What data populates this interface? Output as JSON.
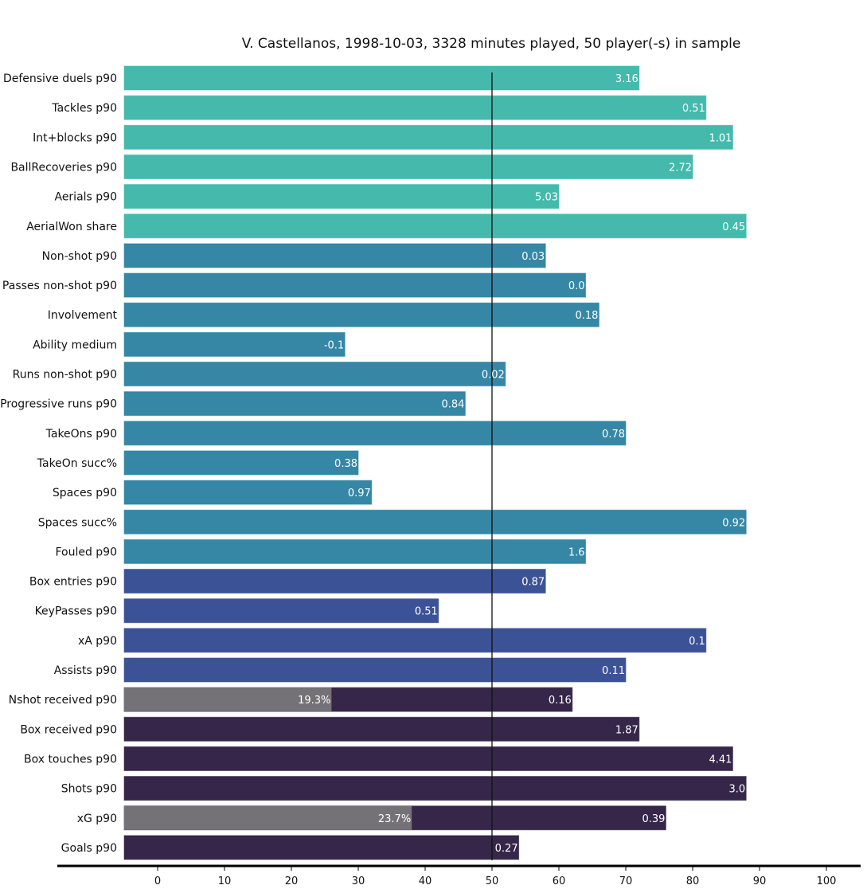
{
  "chart_data": {
    "type": "bar",
    "orientation": "horizontal",
    "title": "V. Castellanos, 1998-10-03, 3328 minutes played, 50 player(-s) in sample",
    "xlabel": "",
    "ylabel": "",
    "xlim": [
      -5,
      105
    ],
    "xticks": [
      0,
      10,
      20,
      30,
      40,
      50,
      60,
      70,
      80,
      90,
      100
    ],
    "reference_line": 50,
    "grid": false,
    "bar_start": -5,
    "group_colors": {
      "defending": "#46b9ad",
      "progression": "#3587a5",
      "creation": "#3c5296",
      "finishing": "#36264a",
      "share": "#757277"
    },
    "categories": [
      "Defensive duels p90",
      "Tackles p90",
      "Int+blocks p90",
      "BallRecoveries p90",
      "Aerials p90",
      "AerialWon share",
      "Non-shot p90",
      "Passes non-shot p90",
      "Involvement",
      "Ability medium",
      "Runs non-shot p90",
      "Progressive runs p90",
      "TakeOns p90",
      "TakeOn succ%",
      "Spaces p90",
      "Spaces succ%",
      "Fouled p90",
      "Box entries p90",
      "KeyPasses p90",
      "xA p90",
      "Assists p90",
      "Nshot received p90",
      "Box received p90",
      "Box touches p90",
      "Shots p90",
      "xG p90",
      "Goals p90"
    ],
    "bars": [
      {
        "label": "Defensive duels p90",
        "percentile": 72,
        "value_label": "3.16",
        "group": "defending"
      },
      {
        "label": "Tackles p90",
        "percentile": 82,
        "value_label": "0.51",
        "group": "defending"
      },
      {
        "label": "Int+blocks p90",
        "percentile": 86,
        "value_label": "1.01",
        "group": "defending"
      },
      {
        "label": "BallRecoveries p90",
        "percentile": 80,
        "value_label": "2.72",
        "group": "defending"
      },
      {
        "label": "Aerials p90",
        "percentile": 60,
        "value_label": "5.03",
        "group": "defending"
      },
      {
        "label": "AerialWon share",
        "percentile": 88,
        "value_label": "0.45",
        "group": "defending"
      },
      {
        "label": "Non-shot p90",
        "percentile": 58,
        "value_label": "0.03",
        "group": "progression"
      },
      {
        "label": "Passes non-shot p90",
        "percentile": 64,
        "value_label": "0.0",
        "group": "progression"
      },
      {
        "label": "Involvement",
        "percentile": 66,
        "value_label": "0.18",
        "group": "progression"
      },
      {
        "label": "Ability medium",
        "percentile": 28,
        "value_label": "-0.1",
        "group": "progression"
      },
      {
        "label": "Runs non-shot p90",
        "percentile": 52,
        "value_label": "0.02",
        "group": "progression"
      },
      {
        "label": "Progressive runs p90",
        "percentile": 46,
        "value_label": "0.84",
        "group": "progression"
      },
      {
        "label": "TakeOns p90",
        "percentile": 70,
        "value_label": "0.78",
        "group": "progression"
      },
      {
        "label": "TakeOn succ%",
        "percentile": 30,
        "value_label": "0.38",
        "group": "progression"
      },
      {
        "label": "Spaces p90",
        "percentile": 32,
        "value_label": "0.97",
        "group": "progression"
      },
      {
        "label": "Spaces succ%",
        "percentile": 88,
        "value_label": "0.92",
        "group": "progression"
      },
      {
        "label": "Fouled p90",
        "percentile": 64,
        "value_label": "1.6",
        "group": "progression"
      },
      {
        "label": "Box entries p90",
        "percentile": 58,
        "value_label": "0.87",
        "group": "creation"
      },
      {
        "label": "KeyPasses p90",
        "percentile": 42,
        "value_label": "0.51",
        "group": "creation"
      },
      {
        "label": "xA p90",
        "percentile": 82,
        "value_label": "0.1",
        "group": "creation"
      },
      {
        "label": "Assists p90",
        "percentile": 70,
        "value_label": "0.11",
        "group": "creation"
      },
      {
        "label": "Nshot received p90",
        "percentile": 62,
        "value_label": "0.16",
        "group": "finishing",
        "share_percentile": 26,
        "share_label": "19.3%"
      },
      {
        "label": "Box received p90",
        "percentile": 72,
        "value_label": "1.87",
        "group": "finishing"
      },
      {
        "label": "Box touches p90",
        "percentile": 86,
        "value_label": "4.41",
        "group": "finishing"
      },
      {
        "label": "Shots p90",
        "percentile": 88,
        "value_label": "3.0",
        "group": "finishing"
      },
      {
        "label": "xG p90",
        "percentile": 76,
        "value_label": "0.39",
        "group": "finishing",
        "share_percentile": 38,
        "share_label": "23.7%"
      },
      {
        "label": "Goals p90",
        "percentile": 54,
        "value_label": "0.27",
        "group": "finishing"
      }
    ]
  }
}
